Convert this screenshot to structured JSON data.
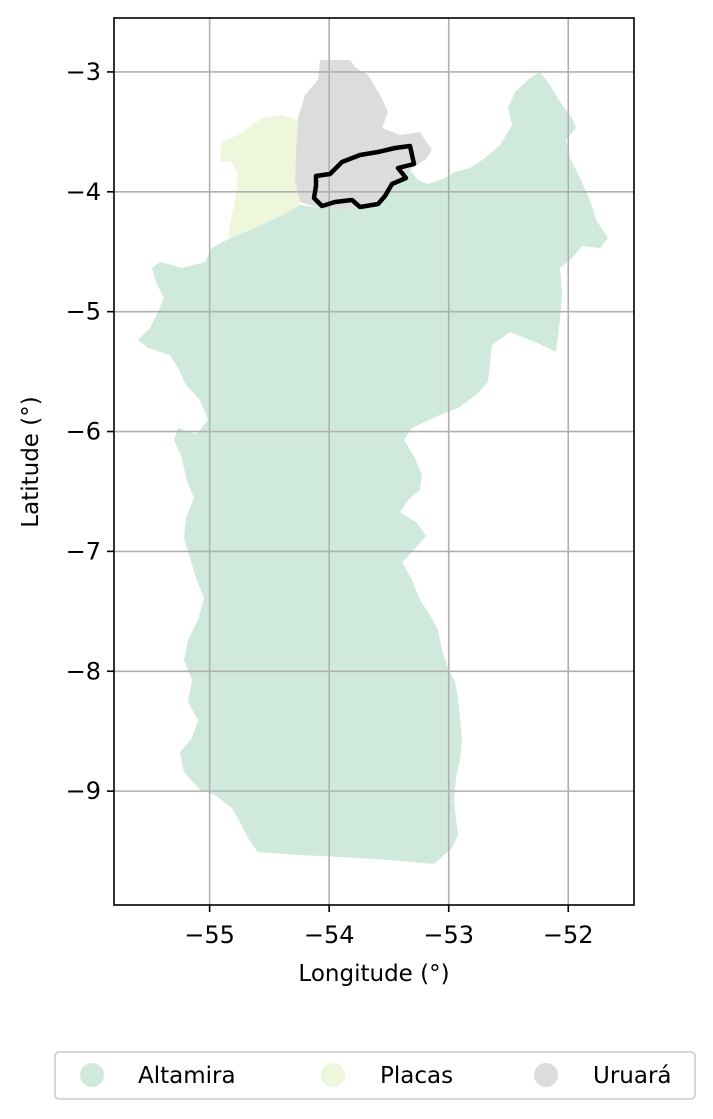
{
  "chart_data": {
    "type": "map",
    "xlabel": "Longitude (°)",
    "ylabel": "Latitude (°)",
    "xlim": [
      -55.8,
      -51.45
    ],
    "ylim": [
      -9.95,
      -2.55
    ],
    "xticks": [
      -55,
      -54,
      -53,
      -52
    ],
    "yticks": [
      -3,
      -4,
      -5,
      -6,
      -7,
      -8,
      -9
    ],
    "grid": true,
    "regions": [
      {
        "name": "Altamira",
        "color": "#cfeadc"
      },
      {
        "name": "Placas",
        "color": "#eef6dc"
      },
      {
        "name": "Uruará",
        "color": "#dcdcdc"
      }
    ],
    "highlight_outline": {
      "color": "#000000",
      "style": "thick outline"
    },
    "legend": {
      "placement": "bottom",
      "items": [
        {
          "label": "Altamira",
          "color": "#cfeadc"
        },
        {
          "label": "Placas",
          "color": "#eef6dc"
        },
        {
          "label": "Uruará",
          "color": "#dcdcdc"
        }
      ]
    }
  }
}
